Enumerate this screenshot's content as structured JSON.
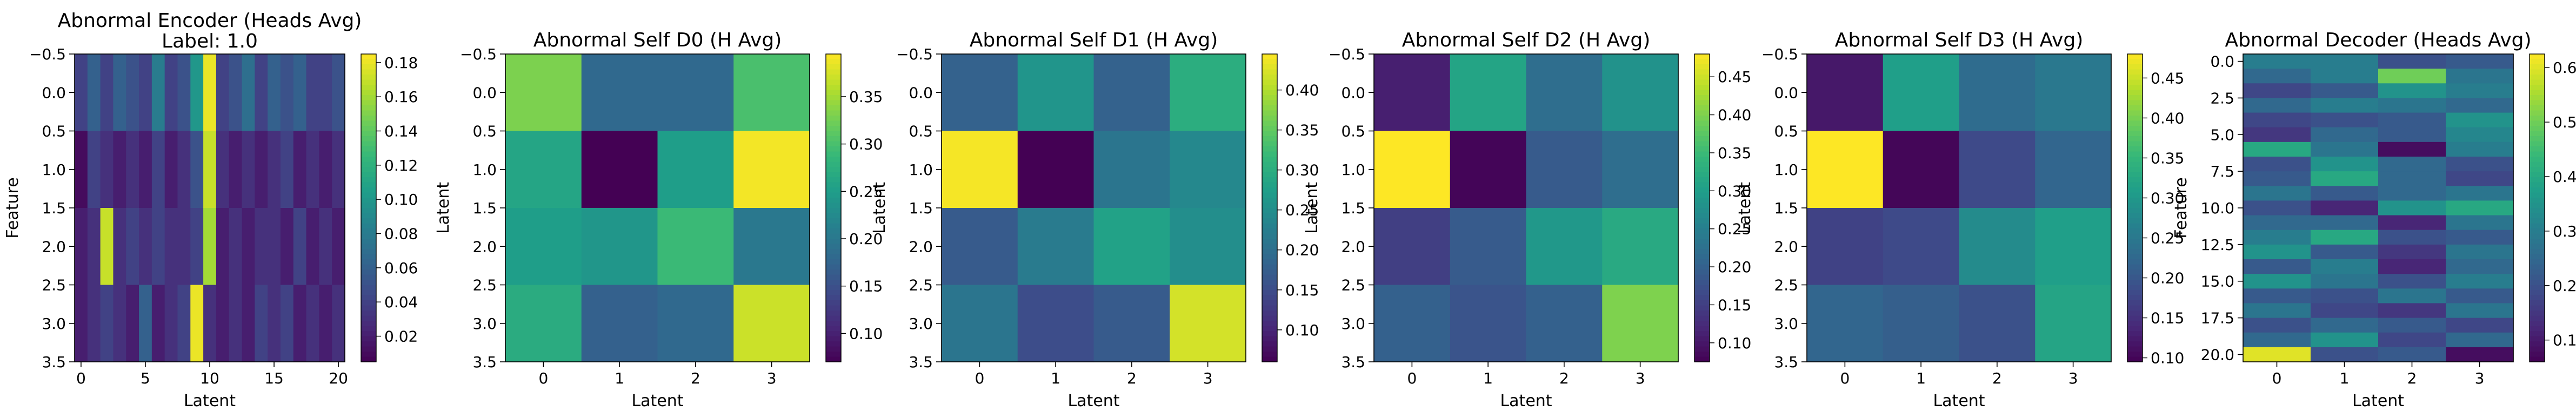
{
  "colormap": "viridis",
  "chart_data": [
    {
      "type": "heatmap",
      "title": "Abnormal Encoder (Heads Avg)",
      "subtitle": "Label: 1.0",
      "xlabel": "Latent",
      "ylabel": "Feature",
      "x_ticks": [
        "0",
        "5",
        "10",
        "15",
        "20"
      ],
      "y_ticks": [
        "−0.5",
        "0.0",
        "0.5",
        "1.0",
        "1.5",
        "2.0",
        "2.5",
        "3.0",
        "3.5"
      ],
      "xlim": [
        -0.5,
        20.5
      ],
      "ylim": [
        3.5,
        -0.5
      ],
      "colorbar_ticks": [
        "0.02",
        "0.04",
        "0.06",
        "0.08",
        "0.10",
        "0.12",
        "0.14",
        "0.16",
        "0.18"
      ],
      "vmin": 0.005,
      "vmax": 0.185,
      "values": [
        [
          0.04,
          0.06,
          0.04,
          0.06,
          0.05,
          0.04,
          0.08,
          0.04,
          0.05,
          0.1,
          0.18,
          0.04,
          0.05,
          0.07,
          0.04,
          0.06,
          0.05,
          0.06,
          0.04,
          0.04,
          0.05
        ],
        [
          0.01,
          0.04,
          0.03,
          0.02,
          0.03,
          0.02,
          0.04,
          0.02,
          0.03,
          0.05,
          0.17,
          0.03,
          0.02,
          0.03,
          0.02,
          0.03,
          0.04,
          0.02,
          0.03,
          0.02,
          0.03
        ],
        [
          0.02,
          0.03,
          0.17,
          0.03,
          0.04,
          0.03,
          0.04,
          0.03,
          0.03,
          0.04,
          0.16,
          0.02,
          0.03,
          0.02,
          0.03,
          0.03,
          0.02,
          0.04,
          0.02,
          0.03,
          0.02
        ],
        [
          0.02,
          0.03,
          0.04,
          0.03,
          0.02,
          0.06,
          0.02,
          0.03,
          0.04,
          0.18,
          0.03,
          0.02,
          0.03,
          0.02,
          0.04,
          0.03,
          0.04,
          0.02,
          0.03,
          0.02,
          0.03
        ]
      ]
    },
    {
      "type": "heatmap",
      "title": "Abnormal Self D0 (H Avg)",
      "xlabel": "Latent",
      "ylabel": "Latent",
      "x_ticks": [
        "0",
        "1",
        "2",
        "3"
      ],
      "y_ticks": [
        "−0.5",
        "0.0",
        "0.5",
        "1.0",
        "1.5",
        "2.0",
        "2.5",
        "3.0",
        "3.5"
      ],
      "xlim": [
        -0.5,
        3.5
      ],
      "ylim": [
        3.5,
        -0.5
      ],
      "colorbar_ticks": [
        "0.10",
        "0.15",
        "0.20",
        "0.25",
        "0.30",
        "0.35"
      ],
      "vmin": 0.07,
      "vmax": 0.395,
      "values": [
        [
          0.33,
          0.18,
          0.18,
          0.3
        ],
        [
          0.26,
          0.07,
          0.25,
          0.39
        ],
        [
          0.25,
          0.24,
          0.29,
          0.2
        ],
        [
          0.27,
          0.17,
          0.18,
          0.37
        ]
      ]
    },
    {
      "type": "heatmap",
      "title": "Abnormal Self D1 (H Avg)",
      "xlabel": "Latent",
      "ylabel": "Latent",
      "x_ticks": [
        "0",
        "1",
        "2",
        "3"
      ],
      "y_ticks": [
        "−0.5",
        "0.0",
        "0.5",
        "1.0",
        "1.5",
        "2.0",
        "2.5",
        "3.0",
        "3.5"
      ],
      "xlim": [
        -0.5,
        3.5
      ],
      "ylim": [
        3.5,
        -0.5
      ],
      "colorbar_ticks": [
        "0.10",
        "0.15",
        "0.20",
        "0.25",
        "0.30",
        "0.35",
        "0.40"
      ],
      "vmin": 0.06,
      "vmax": 0.445,
      "values": [
        [
          0.18,
          0.26,
          0.18,
          0.3
        ],
        [
          0.44,
          0.06,
          0.21,
          0.24
        ],
        [
          0.17,
          0.22,
          0.28,
          0.25
        ],
        [
          0.21,
          0.15,
          0.17,
          0.42
        ]
      ]
    },
    {
      "type": "heatmap",
      "title": "Abnormal Self D2 (H Avg)",
      "xlabel": "Latent",
      "ylabel": "Latent",
      "x_ticks": [
        "0",
        "1",
        "2",
        "3"
      ],
      "y_ticks": [
        "−0.5",
        "0.0",
        "0.5",
        "1.0",
        "1.5",
        "2.0",
        "2.5",
        "3.0",
        "3.5"
      ],
      "xlim": [
        -0.5,
        3.5
      ],
      "ylim": [
        3.5,
        -0.5
      ],
      "colorbar_ticks": [
        "0.10",
        "0.15",
        "0.20",
        "0.25",
        "0.30",
        "0.35",
        "0.40",
        "0.45"
      ],
      "vmin": 0.075,
      "vmax": 0.48,
      "values": [
        [
          0.11,
          0.31,
          0.22,
          0.28
        ],
        [
          0.48,
          0.08,
          0.19,
          0.22
        ],
        [
          0.15,
          0.19,
          0.29,
          0.32
        ],
        [
          0.2,
          0.18,
          0.2,
          0.4
        ]
      ]
    },
    {
      "type": "heatmap",
      "title": "Abnormal Self D3 (H Avg)",
      "xlabel": "Latent",
      "ylabel": "Latent",
      "x_ticks": [
        "0",
        "1",
        "2",
        "3"
      ],
      "y_ticks": [
        "−0.5",
        "0.0",
        "0.5",
        "1.0",
        "1.5",
        "2.0",
        "2.5",
        "3.0",
        "3.5"
      ],
      "xlim": [
        -0.5,
        3.5
      ],
      "ylim": [
        3.5,
        -0.5
      ],
      "colorbar_ticks": [
        "0.10",
        "0.15",
        "0.20",
        "0.25",
        "0.30",
        "0.35",
        "0.40",
        "0.45"
      ],
      "vmin": 0.095,
      "vmax": 0.48,
      "values": [
        [
          0.12,
          0.31,
          0.23,
          0.25
        ],
        [
          0.48,
          0.1,
          0.18,
          0.22
        ],
        [
          0.17,
          0.18,
          0.28,
          0.31
        ],
        [
          0.22,
          0.21,
          0.19,
          0.32
        ]
      ]
    },
    {
      "type": "heatmap",
      "title": "Abnormal Decoder (Heads Avg)",
      "xlabel": "Latent",
      "ylabel": "Feature",
      "x_ticks": [
        "0",
        "1",
        "2",
        "3"
      ],
      "y_ticks": [
        "0.0",
        "2.5",
        "5.0",
        "7.5",
        "10.0",
        "12.5",
        "15.0",
        "17.5",
        "20.0"
      ],
      "xlim": [
        -0.5,
        3.5
      ],
      "ylim": [
        20.5,
        -0.5
      ],
      "colorbar_ticks": [
        "0.1",
        "0.2",
        "0.3",
        "0.4",
        "0.5",
        "0.6"
      ],
      "vmin": 0.06,
      "vmax": 0.625,
      "values": [
        [
          0.3,
          0.3,
          0.2,
          0.22
        ],
        [
          0.25,
          0.3,
          0.5,
          0.28
        ],
        [
          0.18,
          0.22,
          0.35,
          0.3
        ],
        [
          0.25,
          0.3,
          0.28,
          0.25
        ],
        [
          0.18,
          0.2,
          0.22,
          0.35
        ],
        [
          0.15,
          0.25,
          0.22,
          0.32
        ],
        [
          0.4,
          0.28,
          0.08,
          0.3
        ],
        [
          0.2,
          0.35,
          0.25,
          0.2
        ],
        [
          0.22,
          0.4,
          0.25,
          0.18
        ],
        [
          0.28,
          0.22,
          0.25,
          0.28
        ],
        [
          0.2,
          0.12,
          0.35,
          0.4
        ],
        [
          0.25,
          0.25,
          0.12,
          0.28
        ],
        [
          0.3,
          0.4,
          0.2,
          0.22
        ],
        [
          0.35,
          0.22,
          0.15,
          0.28
        ],
        [
          0.22,
          0.3,
          0.12,
          0.25
        ],
        [
          0.35,
          0.28,
          0.2,
          0.3
        ],
        [
          0.22,
          0.2,
          0.28,
          0.22
        ],
        [
          0.28,
          0.18,
          0.15,
          0.28
        ],
        [
          0.2,
          0.25,
          0.22,
          0.18
        ],
        [
          0.25,
          0.35,
          0.18,
          0.25
        ],
        [
          0.6,
          0.2,
          0.22,
          0.08
        ]
      ]
    }
  ]
}
